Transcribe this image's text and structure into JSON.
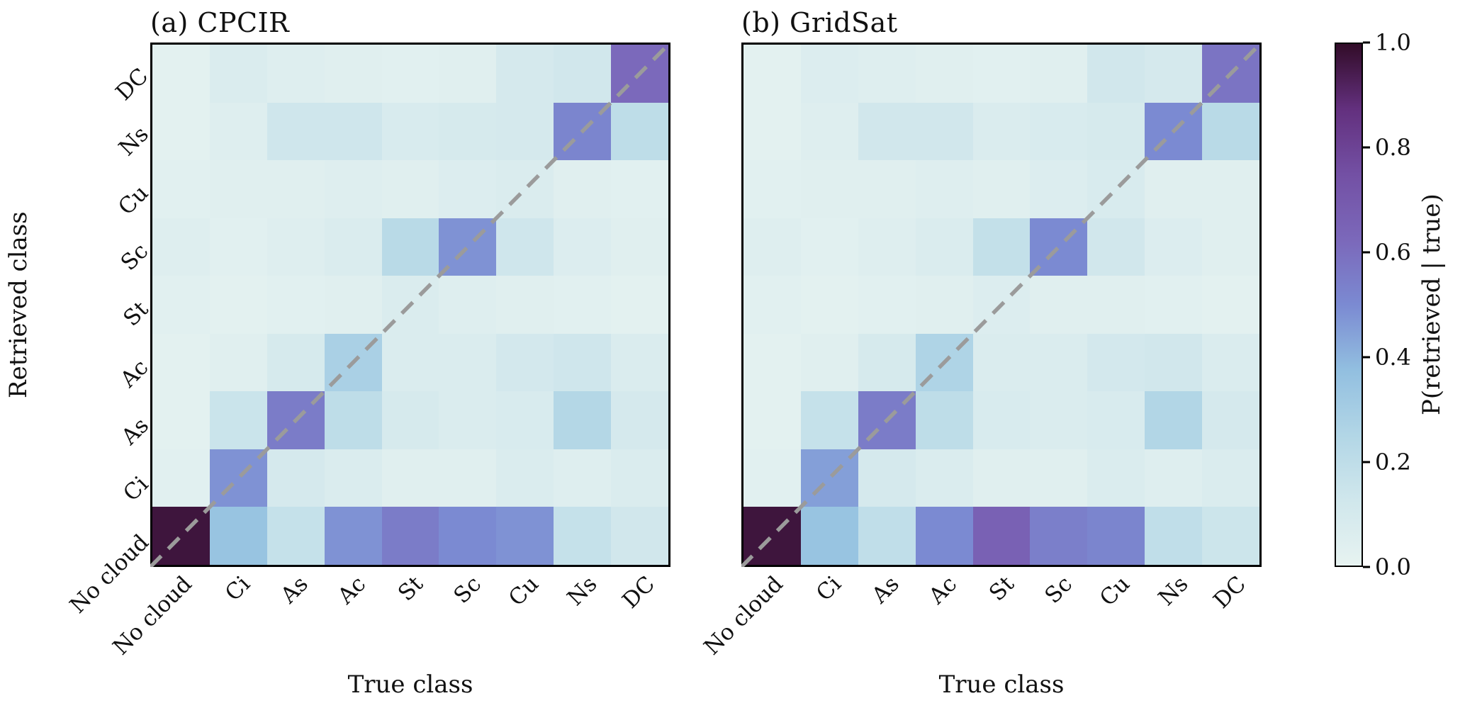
{
  "figure": {
    "background": "#ffffff",
    "frame_color": "#000000",
    "diagonal_line_color": "#9b9b9b"
  },
  "colormap": {
    "name": "dense-like (light cyan to dark plum)",
    "stops": [
      [
        0.0,
        "#e7f3f1"
      ],
      [
        0.125,
        "#d0e7ec"
      ],
      [
        0.25,
        "#b2d6e6"
      ],
      [
        0.375,
        "#92bfe0"
      ],
      [
        0.5,
        "#7b8ad2"
      ],
      [
        0.625,
        "#7b68ba"
      ],
      [
        0.75,
        "#7350a4"
      ],
      [
        0.875,
        "#63307e"
      ],
      [
        1.0,
        "#320c28"
      ]
    ]
  },
  "colorbar": {
    "label": "P(retrieved | true)",
    "min": 0.0,
    "max": 1.0,
    "ticks": [
      "1.0",
      "0.8",
      "0.6",
      "0.4",
      "0.2",
      "0.0"
    ],
    "tick_values": [
      1.0,
      0.8,
      0.6,
      0.4,
      0.2,
      0.0
    ]
  },
  "chart_data": [
    {
      "type": "heatmap",
      "title": "(a) CPCIR",
      "xlabel": "True class",
      "ylabel": "Retrieved class",
      "x_categories": [
        "No cloud",
        "Ci",
        "As",
        "Ac",
        "St",
        "Sc",
        "Cu",
        "Ns",
        "DC"
      ],
      "y_categories_top_to_bottom": [
        "DC",
        "Ns",
        "Cu",
        "Sc",
        "St",
        "Ac",
        "As",
        "Ci",
        "No cloud"
      ],
      "value_range": [
        0,
        1
      ],
      "diagonal_dashed_line": true,
      "matrix_rows_top_to_bottom": [
        [
          0.02,
          0.07,
          0.05,
          0.04,
          0.03,
          0.04,
          0.1,
          0.12,
          0.62
        ],
        [
          0.02,
          0.05,
          0.13,
          0.13,
          0.08,
          0.09,
          0.1,
          0.52,
          0.2
        ],
        [
          0.03,
          0.04,
          0.04,
          0.05,
          0.04,
          0.06,
          0.07,
          0.04,
          0.03
        ],
        [
          0.05,
          0.03,
          0.05,
          0.07,
          0.22,
          0.48,
          0.13,
          0.06,
          0.04
        ],
        [
          0.03,
          0.02,
          0.03,
          0.04,
          0.07,
          0.05,
          0.04,
          0.03,
          0.02
        ],
        [
          0.02,
          0.04,
          0.09,
          0.28,
          0.07,
          0.07,
          0.11,
          0.13,
          0.07
        ],
        [
          0.02,
          0.15,
          0.55,
          0.2,
          0.09,
          0.07,
          0.08,
          0.24,
          0.1
        ],
        [
          0.03,
          0.48,
          0.1,
          0.07,
          0.04,
          0.04,
          0.07,
          0.05,
          0.07
        ],
        [
          0.97,
          0.35,
          0.17,
          0.48,
          0.55,
          0.5,
          0.48,
          0.17,
          0.12
        ]
      ]
    },
    {
      "type": "heatmap",
      "title": "(b) GridSat",
      "xlabel": "True class",
      "ylabel": "",
      "x_categories": [
        "No cloud",
        "Ci",
        "As",
        "Ac",
        "St",
        "Sc",
        "Cu",
        "Ns",
        "DC"
      ],
      "y_categories_top_to_bottom": [
        "DC",
        "Ns",
        "Cu",
        "Sc",
        "St",
        "Ac",
        "As",
        "Ci",
        "No cloud"
      ],
      "value_range": [
        0,
        1
      ],
      "diagonal_dashed_line": true,
      "matrix_rows_top_to_bottom": [
        [
          0.02,
          0.06,
          0.05,
          0.04,
          0.03,
          0.04,
          0.12,
          0.1,
          0.58
        ],
        [
          0.02,
          0.05,
          0.12,
          0.12,
          0.07,
          0.08,
          0.09,
          0.5,
          0.22
        ],
        [
          0.03,
          0.04,
          0.04,
          0.05,
          0.04,
          0.06,
          0.08,
          0.04,
          0.04
        ],
        [
          0.05,
          0.03,
          0.05,
          0.07,
          0.18,
          0.5,
          0.12,
          0.06,
          0.04
        ],
        [
          0.03,
          0.02,
          0.03,
          0.04,
          0.06,
          0.04,
          0.04,
          0.03,
          0.02
        ],
        [
          0.02,
          0.04,
          0.09,
          0.26,
          0.07,
          0.07,
          0.11,
          0.12,
          0.07
        ],
        [
          0.02,
          0.17,
          0.55,
          0.2,
          0.08,
          0.07,
          0.08,
          0.25,
          0.1
        ],
        [
          0.03,
          0.45,
          0.1,
          0.07,
          0.04,
          0.04,
          0.07,
          0.05,
          0.07
        ],
        [
          0.97,
          0.35,
          0.19,
          0.5,
          0.66,
          0.54,
          0.52,
          0.19,
          0.14
        ]
      ]
    }
  ]
}
